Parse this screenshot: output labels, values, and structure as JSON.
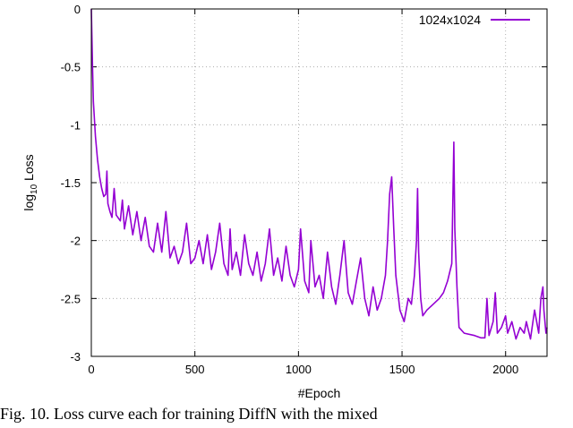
{
  "chart_data": {
    "type": "line",
    "title": "",
    "xlabel": "#Epoch",
    "ylabel": {
      "base": "log",
      "sub": "10",
      "rest": " Loss"
    },
    "xlim": [
      0,
      2200
    ],
    "ylim": [
      -3,
      0
    ],
    "xticks": [
      0,
      500,
      1000,
      1500,
      2000
    ],
    "yticks": [
      0,
      -0.5,
      -1,
      -1.5,
      -2,
      -2.5,
      -3
    ],
    "xtick_labels": [
      "0",
      "500",
      "1000",
      "1500",
      "2000"
    ],
    "ytick_labels": [
      "0",
      "-0.5",
      "-1",
      "-1.5",
      "-2",
      "-2.5",
      "-3"
    ],
    "grid": true,
    "legend_position": "top-right",
    "series": [
      {
        "name": "1024x1024",
        "color": "#9400d3",
        "points": [
          [
            0,
            0.0
          ],
          [
            5,
            -0.45
          ],
          [
            10,
            -0.8
          ],
          [
            20,
            -1.1
          ],
          [
            30,
            -1.3
          ],
          [
            40,
            -1.45
          ],
          [
            50,
            -1.55
          ],
          [
            60,
            -1.62
          ],
          [
            70,
            -1.6
          ],
          [
            75,
            -1.4
          ],
          [
            80,
            -1.68
          ],
          [
            90,
            -1.75
          ],
          [
            100,
            -1.8
          ],
          [
            110,
            -1.55
          ],
          [
            120,
            -1.78
          ],
          [
            140,
            -1.83
          ],
          [
            150,
            -1.65
          ],
          [
            160,
            -1.9
          ],
          [
            180,
            -1.7
          ],
          [
            200,
            -1.95
          ],
          [
            220,
            -1.75
          ],
          [
            240,
            -2.0
          ],
          [
            260,
            -1.8
          ],
          [
            280,
            -2.05
          ],
          [
            300,
            -2.1
          ],
          [
            320,
            -1.85
          ],
          [
            340,
            -2.1
          ],
          [
            360,
            -1.75
          ],
          [
            380,
            -2.15
          ],
          [
            400,
            -2.05
          ],
          [
            420,
            -2.2
          ],
          [
            440,
            -2.1
          ],
          [
            460,
            -1.85
          ],
          [
            480,
            -2.2
          ],
          [
            500,
            -2.15
          ],
          [
            520,
            -2.0
          ],
          [
            540,
            -2.2
          ],
          [
            560,
            -1.95
          ],
          [
            580,
            -2.25
          ],
          [
            600,
            -2.1
          ],
          [
            620,
            -1.85
          ],
          [
            640,
            -2.2
          ],
          [
            660,
            -2.3
          ],
          [
            670,
            -1.9
          ],
          [
            680,
            -2.25
          ],
          [
            700,
            -2.1
          ],
          [
            720,
            -2.3
          ],
          [
            740,
            -1.95
          ],
          [
            760,
            -2.2
          ],
          [
            780,
            -2.3
          ],
          [
            800,
            -2.1
          ],
          [
            820,
            -2.35
          ],
          [
            840,
            -2.2
          ],
          [
            860,
            -1.9
          ],
          [
            880,
            -2.3
          ],
          [
            900,
            -2.15
          ],
          [
            920,
            -2.35
          ],
          [
            940,
            -2.05
          ],
          [
            960,
            -2.3
          ],
          [
            980,
            -2.4
          ],
          [
            1000,
            -2.25
          ],
          [
            1010,
            -1.9
          ],
          [
            1030,
            -2.35
          ],
          [
            1050,
            -2.45
          ],
          [
            1060,
            -2.0
          ],
          [
            1080,
            -2.4
          ],
          [
            1100,
            -2.3
          ],
          [
            1120,
            -2.5
          ],
          [
            1140,
            -2.1
          ],
          [
            1160,
            -2.4
          ],
          [
            1180,
            -2.55
          ],
          [
            1200,
            -2.3
          ],
          [
            1220,
            -2.0
          ],
          [
            1240,
            -2.45
          ],
          [
            1260,
            -2.55
          ],
          [
            1280,
            -2.35
          ],
          [
            1300,
            -2.15
          ],
          [
            1320,
            -2.5
          ],
          [
            1340,
            -2.65
          ],
          [
            1360,
            -2.4
          ],
          [
            1380,
            -2.6
          ],
          [
            1400,
            -2.5
          ],
          [
            1420,
            -2.3
          ],
          [
            1430,
            -2.0
          ],
          [
            1440,
            -1.6
          ],
          [
            1450,
            -1.45
          ],
          [
            1460,
            -1.9
          ],
          [
            1470,
            -2.3
          ],
          [
            1490,
            -2.6
          ],
          [
            1510,
            -2.7
          ],
          [
            1530,
            -2.5
          ],
          [
            1545,
            -2.55
          ],
          [
            1560,
            -2.3
          ],
          [
            1570,
            -2.0
          ],
          [
            1575,
            -1.55
          ],
          [
            1580,
            -2.1
          ],
          [
            1590,
            -2.5
          ],
          [
            1600,
            -2.65
          ],
          [
            1620,
            -2.6
          ],
          [
            1650,
            -2.55
          ],
          [
            1680,
            -2.5
          ],
          [
            1700,
            -2.45
          ],
          [
            1720,
            -2.35
          ],
          [
            1740,
            -2.2
          ],
          [
            1750,
            -1.15
          ],
          [
            1755,
            -1.9
          ],
          [
            1765,
            -2.4
          ],
          [
            1775,
            -2.75
          ],
          [
            1800,
            -2.8
          ],
          [
            1850,
            -2.82
          ],
          [
            1880,
            -2.84
          ],
          [
            1900,
            -2.84
          ],
          [
            1910,
            -2.5
          ],
          [
            1920,
            -2.82
          ],
          [
            1940,
            -2.7
          ],
          [
            1950,
            -2.45
          ],
          [
            1960,
            -2.8
          ],
          [
            1980,
            -2.75
          ],
          [
            2000,
            -2.65
          ],
          [
            2010,
            -2.8
          ],
          [
            2030,
            -2.7
          ],
          [
            2050,
            -2.85
          ],
          [
            2070,
            -2.75
          ],
          [
            2090,
            -2.8
          ],
          [
            2100,
            -2.7
          ],
          [
            2120,
            -2.85
          ],
          [
            2140,
            -2.6
          ],
          [
            2160,
            -2.8
          ],
          [
            2170,
            -2.5
          ],
          [
            2180,
            -2.4
          ],
          [
            2185,
            -2.6
          ],
          [
            2195,
            -2.8
          ],
          [
            2200,
            -2.75
          ]
        ]
      }
    ]
  },
  "caption": "Fig. 10. Loss curve each for training DiffN with the mixed"
}
